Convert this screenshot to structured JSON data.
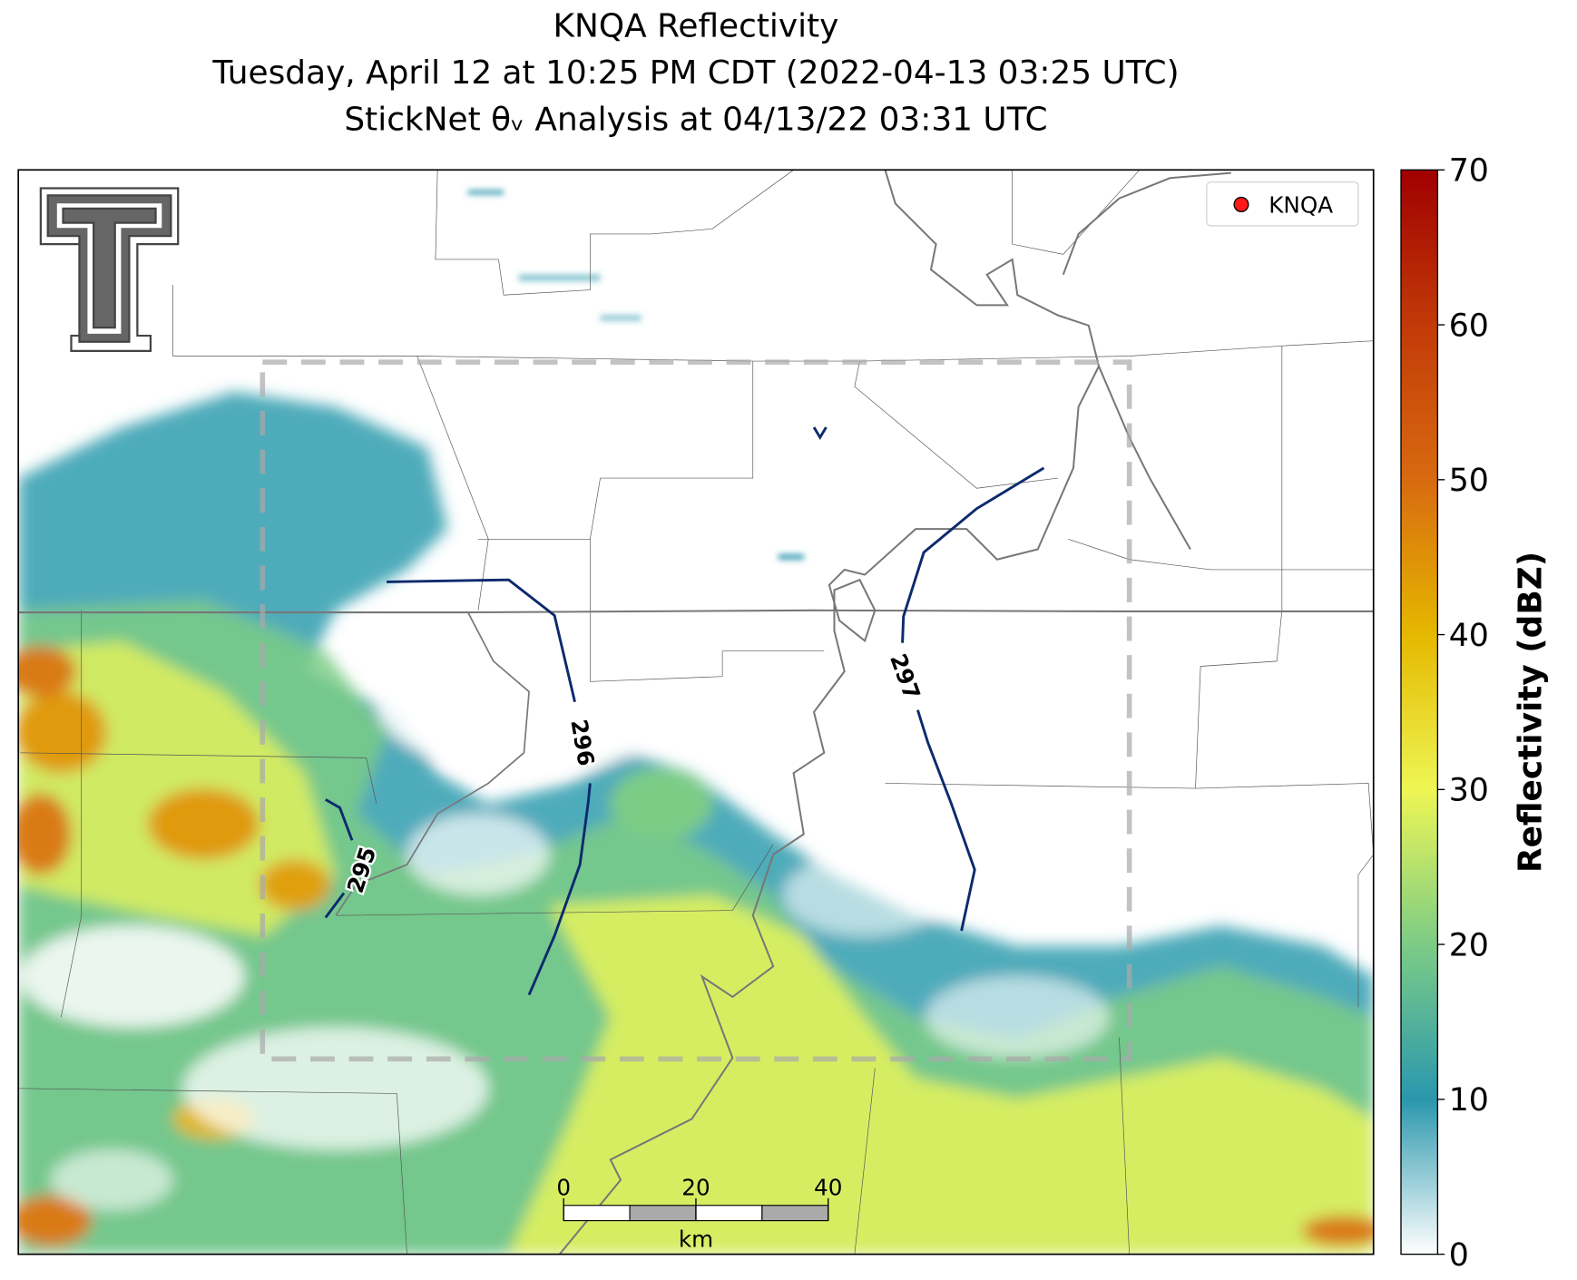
{
  "title": [
    "KNQA Reflectivity",
    "Tuesday, April 12 at 10:25 PM CDT (2022-04-13 03:25 UTC)",
    "StickNet θᵥ Analysis at 04/13/22 03:31 UTC"
  ],
  "legend": {
    "label": "KNQA"
  },
  "colorbar": {
    "label": "Reflectivity (dBZ)",
    "lim": [
      0,
      70
    ],
    "ticks": [
      0,
      10,
      20,
      30,
      40,
      50,
      60,
      70
    ]
  },
  "contours": [
    {
      "label": 295
    },
    {
      "label": 296
    },
    {
      "label": 297
    }
  ],
  "scale_bar": {
    "ticks": [
      0,
      20,
      40
    ],
    "unit": "km"
  }
}
